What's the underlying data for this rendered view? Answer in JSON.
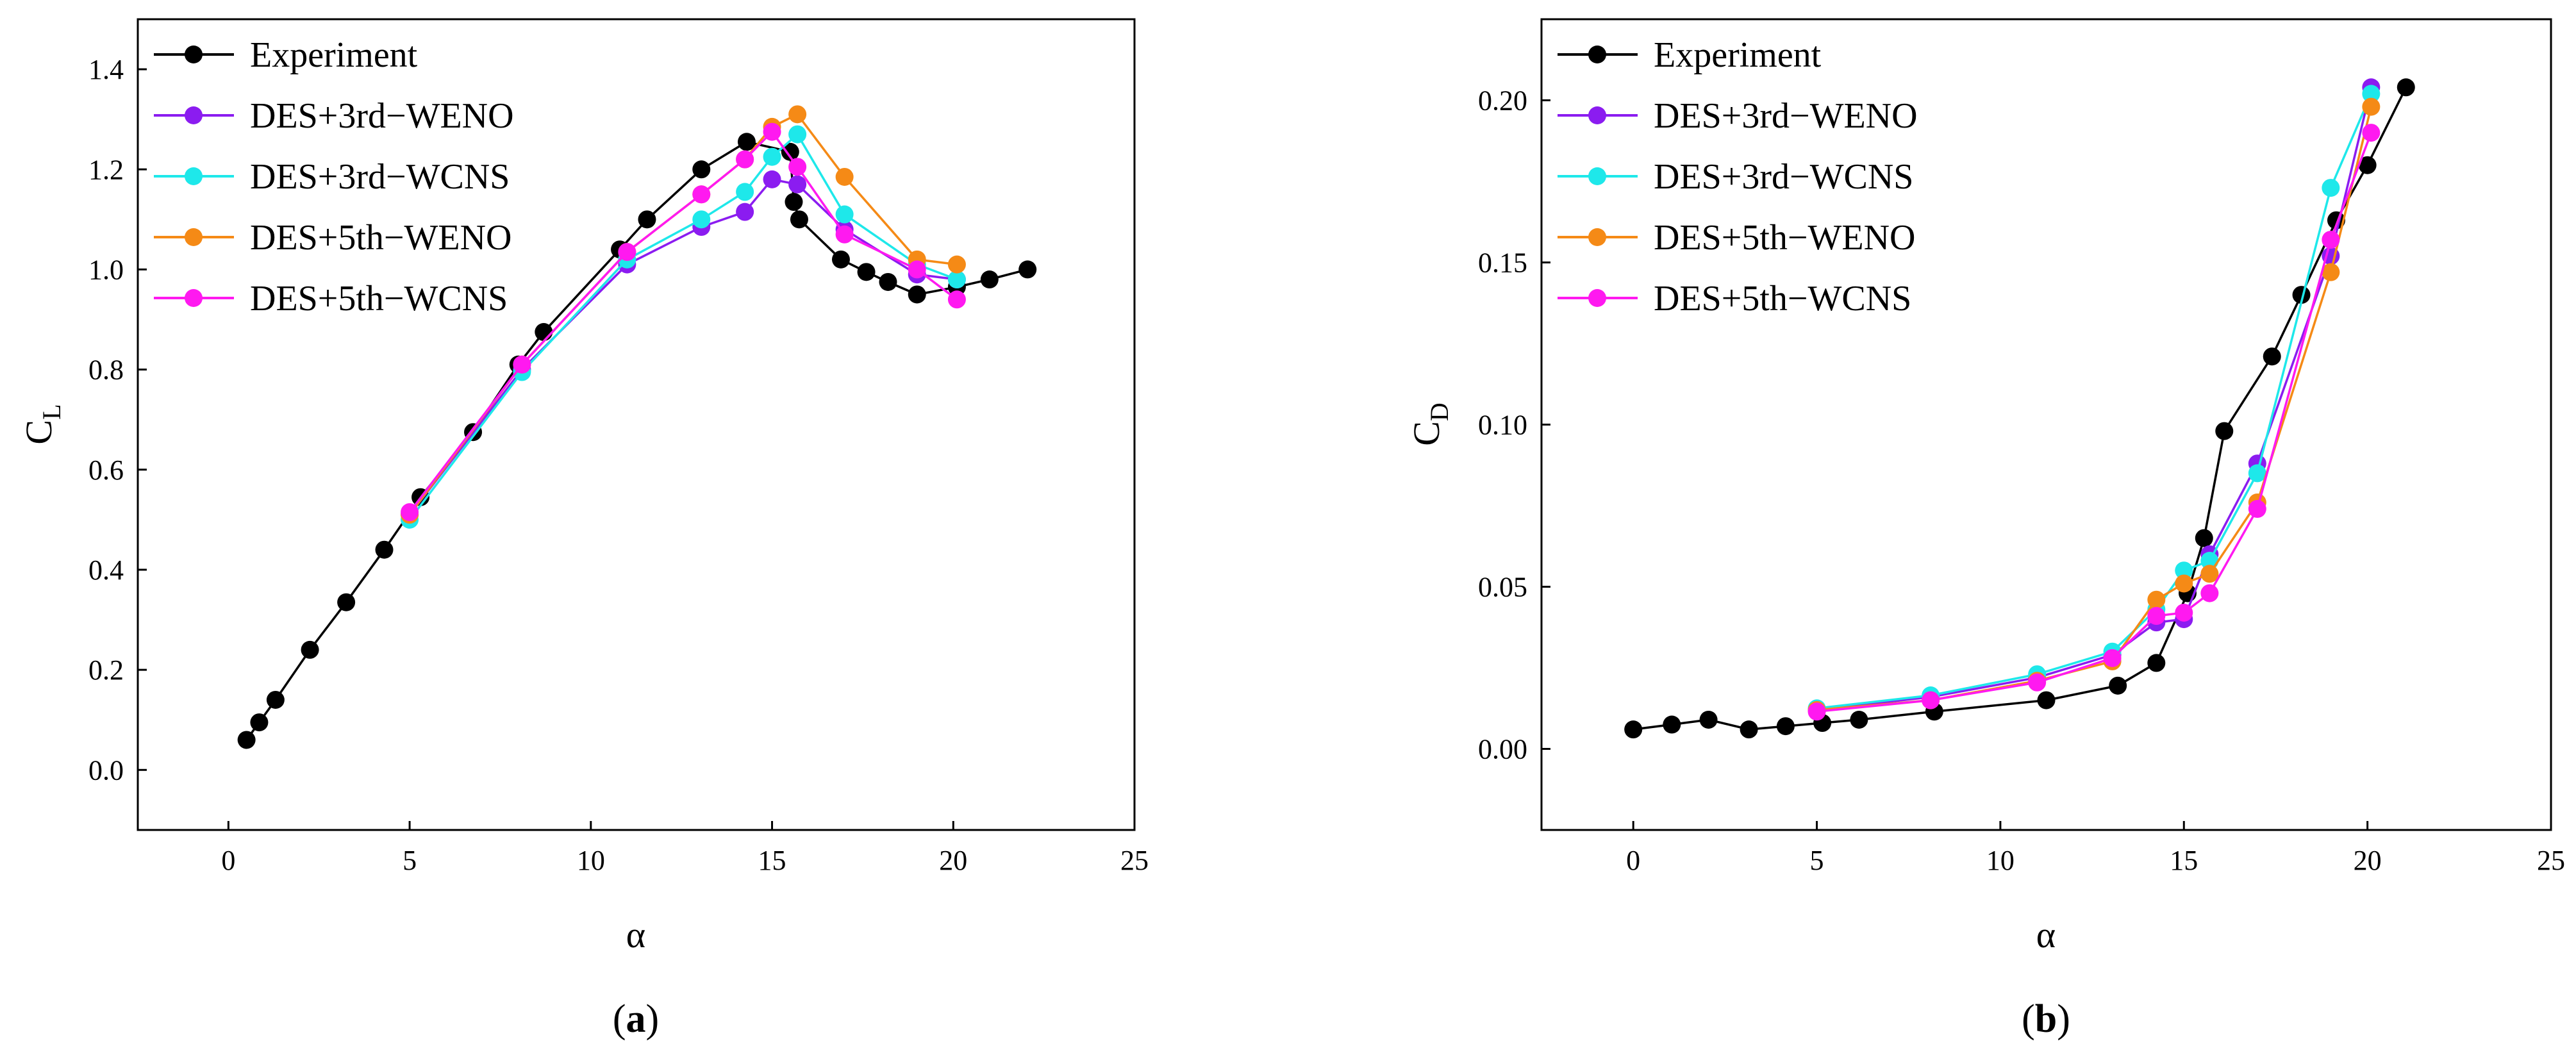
{
  "panels": [
    {
      "panel_label_open": "(",
      "panel_label_letter": "a",
      "panel_label_close": ")"
    },
    {
      "panel_label_open": "(",
      "panel_label_letter": "b",
      "panel_label_close": ")"
    }
  ],
  "chart_data": [
    {
      "type": "line",
      "title": "",
      "xlabel": "α",
      "ylabel_main": "C",
      "ylabel_sub": "L",
      "xlim": [
        -2.5,
        25
      ],
      "ylim": [
        -0.12,
        1.5
      ],
      "xticks": [
        0,
        5,
        10,
        15,
        20,
        25
      ],
      "xtick_labels": [
        "0",
        "5",
        "10",
        "15",
        "20",
        "25"
      ],
      "yticks": [
        0.0,
        0.2,
        0.4,
        0.6,
        0.8,
        1.0,
        1.2,
        1.4
      ],
      "ytick_labels": [
        "0.0",
        "0.2",
        "0.4",
        "0.6",
        "0.8",
        "1.0",
        "1.2",
        "1.4"
      ],
      "legend_position": "top-left",
      "grid": false,
      "series": [
        {
          "name": "Experiment",
          "color": "#000000",
          "x": [
            0.5,
            0.85,
            1.3,
            2.25,
            3.25,
            4.3,
            5.3,
            6.75,
            8.0,
            8.7,
            10.8,
            11.55,
            13.05,
            14.3,
            15.5,
            15.6,
            15.75,
            16.9,
            17.6,
            18.2,
            19.0,
            20.1,
            21.0,
            22.05
          ],
          "y": [
            0.06,
            0.095,
            0.14,
            0.24,
            0.335,
            0.44,
            0.545,
            0.675,
            0.81,
            0.875,
            1.04,
            1.1,
            1.2,
            1.255,
            1.235,
            1.135,
            1.1,
            1.02,
            0.995,
            0.975,
            0.95,
            0.965,
            0.98,
            1.0
          ]
        },
        {
          "name": "DES+3rd−WENO",
          "color": "#8b1cf0",
          "x": [
            5.0,
            8.1,
            11.0,
            13.05,
            14.25,
            15.0,
            15.7,
            17.0,
            19.0,
            20.1
          ],
          "y": [
            0.51,
            0.8,
            1.01,
            1.085,
            1.115,
            1.18,
            1.17,
            1.08,
            0.99,
            0.98
          ]
        },
        {
          "name": "DES+3rd−WCNS",
          "color": "#1ee8ea",
          "x": [
            5.0,
            8.1,
            11.0,
            13.05,
            14.25,
            15.0,
            15.7,
            17.0,
            19.0,
            20.1
          ],
          "y": [
            0.5,
            0.795,
            1.02,
            1.1,
            1.155,
            1.225,
            1.27,
            1.11,
            1.01,
            0.98
          ]
        },
        {
          "name": "DES+5th−WENO",
          "color": "#f58a16",
          "x": [
            5.0,
            8.1,
            11.0,
            13.05,
            14.25,
            15.0,
            15.7,
            17.0,
            19.0,
            20.1
          ],
          "y": [
            0.51,
            0.81,
            1.035,
            1.15,
            1.22,
            1.285,
            1.31,
            1.185,
            1.02,
            1.01
          ]
        },
        {
          "name": "DES+5th−WCNS",
          "color": "#ff19f0",
          "x": [
            5.0,
            8.1,
            11.0,
            13.05,
            14.25,
            15.0,
            15.7,
            17.0,
            19.0,
            20.1
          ],
          "y": [
            0.515,
            0.81,
            1.035,
            1.15,
            1.22,
            1.275,
            1.205,
            1.07,
            1.0,
            0.94
          ]
        }
      ]
    },
    {
      "type": "line",
      "title": "",
      "xlabel": "α",
      "ylabel_main": "C",
      "ylabel_sub": "D",
      "xlim": [
        -2.5,
        25
      ],
      "ylim": [
        -0.025,
        0.225
      ],
      "xticks": [
        0,
        5,
        10,
        15,
        20,
        25
      ],
      "xtick_labels": [
        "0",
        "5",
        "10",
        "15",
        "20",
        "25"
      ],
      "yticks": [
        0.0,
        0.05,
        0.1,
        0.15,
        0.2
      ],
      "ytick_labels": [
        "0.00",
        "0.05",
        "0.10",
        "0.15",
        "0.20"
      ],
      "legend_position": "top-left",
      "grid": false,
      "series": [
        {
          "name": "Experiment",
          "color": "#000000",
          "x": [
            0.0,
            1.05,
            2.05,
            3.15,
            4.15,
            5.15,
            6.15,
            8.2,
            11.25,
            13.2,
            14.25,
            15.1,
            15.55,
            16.1,
            17.4,
            18.2,
            19.15,
            20.0,
            21.05
          ],
          "y": [
            0.006,
            0.0075,
            0.009,
            0.006,
            0.007,
            0.008,
            0.009,
            0.0115,
            0.015,
            0.0195,
            0.0265,
            0.048,
            0.065,
            0.098,
            0.121,
            0.14,
            0.163,
            0.18,
            0.204
          ]
        },
        {
          "name": "DES+3rd−WENO",
          "color": "#8b1cf0",
          "x": [
            5.0,
            8.1,
            11.0,
            13.05,
            14.25,
            15.0,
            15.7,
            17.0,
            19.0,
            20.1
          ],
          "y": [
            0.012,
            0.016,
            0.022,
            0.029,
            0.039,
            0.04,
            0.06,
            0.088,
            0.152,
            0.204
          ]
        },
        {
          "name": "DES+3rd−WCNS",
          "color": "#1ee8ea",
          "x": [
            5.0,
            8.1,
            11.0,
            13.05,
            14.25,
            15.0,
            15.7,
            17.0,
            19.0,
            20.1
          ],
          "y": [
            0.0125,
            0.0165,
            0.023,
            0.03,
            0.043,
            0.055,
            0.058,
            0.085,
            0.173,
            0.202
          ]
        },
        {
          "name": "DES+5th−WENO",
          "color": "#f58a16",
          "x": [
            5.0,
            8.1,
            11.0,
            13.05,
            14.25,
            15.0,
            15.7,
            17.0,
            19.0,
            20.1
          ],
          "y": [
            0.012,
            0.015,
            0.021,
            0.027,
            0.046,
            0.051,
            0.054,
            0.076,
            0.147,
            0.198
          ]
        },
        {
          "name": "DES+5th−WCNS",
          "color": "#ff19f0",
          "x": [
            5.0,
            8.1,
            11.0,
            13.05,
            14.25,
            15.0,
            15.7,
            17.0,
            19.0,
            20.1
          ],
          "y": [
            0.0115,
            0.015,
            0.0205,
            0.028,
            0.041,
            0.042,
            0.048,
            0.074,
            0.157,
            0.19
          ]
        }
      ]
    }
  ]
}
